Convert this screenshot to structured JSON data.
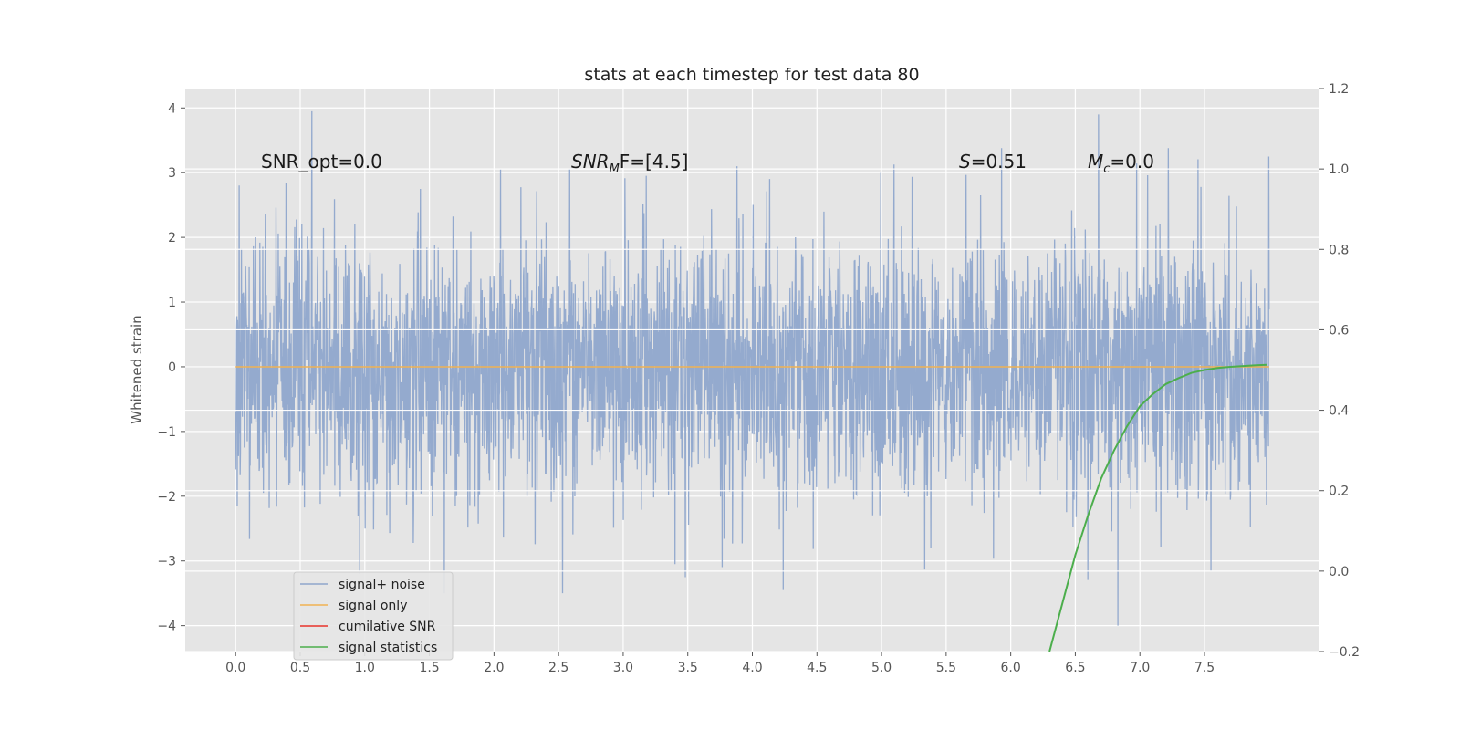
{
  "chart_data": {
    "type": "line",
    "title": "stats at each timestep for test data 80",
    "xlabel": "",
    "ylabel": "Whitened strain",
    "y2label": "",
    "xlim": [
      -0.39,
      8.39
    ],
    "ylim": [
      -4.4,
      4.3
    ],
    "y2lim": [
      -0.2,
      1.2
    ],
    "xticks": [
      "0.0",
      "0.5",
      "1.0",
      "1.5",
      "2.0",
      "2.5",
      "3.0",
      "3.5",
      "4.0",
      "4.5",
      "5.0",
      "5.5",
      "6.0",
      "6.5",
      "7.0",
      "7.5"
    ],
    "yticks": [
      "4",
      "3",
      "2",
      "1",
      "0",
      "−1",
      "−2",
      "−3",
      "−4"
    ],
    "y2ticks": [
      "1.2",
      "1.0",
      "0.8",
      "0.6",
      "0.4",
      "0.2",
      "0.0",
      "−0.2"
    ],
    "grid": true,
    "legend_position": "lower-left",
    "annotations": {
      "snr_opt": "SNR_opt=0.0",
      "snr_mf_main": "SNR",
      "snr_mf_sub": "M",
      "snr_mf_rest": "F=[4.5]",
      "s_main": "S",
      "s_rest": "=0.51",
      "mc_main": "M",
      "mc_sub": "c",
      "mc_rest": "=0.0"
    },
    "series": [
      {
        "name": "signal+ noise",
        "color": "#8fa6cc",
        "description_stats": {
          "x_start": 0.0,
          "x_end": 8.0,
          "mean": 0.0,
          "std": 1.0,
          "max": 3.95,
          "min": -4.0
        },
        "peaks": [
          {
            "x": 0.59,
            "y": 3.95
          },
          {
            "x": 2.05,
            "y": 3.05
          },
          {
            "x": 3.88,
            "y": 3.1
          },
          {
            "x": 5.93,
            "y": 3.38
          },
          {
            "x": 6.68,
            "y": 3.9
          },
          {
            "x": 7.22,
            "y": 3.38
          },
          {
            "x": 0.96,
            "y": -3.2
          },
          {
            "x": 3.48,
            "y": -3.25
          },
          {
            "x": 4.24,
            "y": -3.45
          },
          {
            "x": 6.83,
            "y": -4.0
          },
          {
            "x": 7.55,
            "y": -3.15
          },
          {
            "x": 3.4,
            "y": -3.05
          }
        ]
      },
      {
        "name": "signal only",
        "color": "#f0b252",
        "x": [
          0.0,
          8.0
        ],
        "y": [
          0.0,
          0.0
        ]
      },
      {
        "name": "cumilative SNR",
        "color": "#e8322a",
        "x": [],
        "y": []
      },
      {
        "name": "signal statistics",
        "color": "#4cae4c",
        "axis": "right",
        "x": [
          6.3,
          6.4,
          6.5,
          6.6,
          6.7,
          6.8,
          6.9,
          7.0,
          7.1,
          7.2,
          7.3,
          7.4,
          7.5,
          7.6,
          7.7,
          7.8,
          7.9,
          7.98
        ],
        "y": [
          -0.2,
          -0.08,
          0.04,
          0.14,
          0.23,
          0.3,
          0.36,
          0.41,
          0.44,
          0.465,
          0.48,
          0.493,
          0.5,
          0.505,
          0.508,
          0.51,
          0.512,
          0.513
        ]
      }
    ],
    "legend": [
      {
        "label": "signal+ noise",
        "color": "#8fa6cc"
      },
      {
        "label": "signal only",
        "color": "#f0b252"
      },
      {
        "label": "cumilative SNR",
        "color": "#e8322a"
      },
      {
        "label": "signal statistics",
        "color": "#4cae4c"
      }
    ]
  }
}
